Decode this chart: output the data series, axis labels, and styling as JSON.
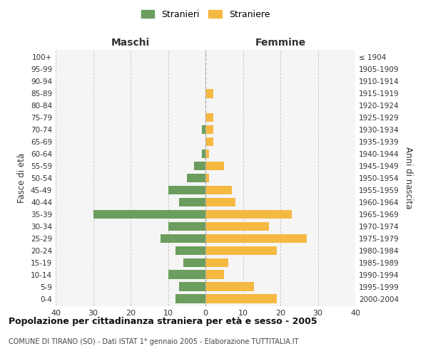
{
  "age_groups": [
    "0-4",
    "5-9",
    "10-14",
    "15-19",
    "20-24",
    "25-29",
    "30-34",
    "35-39",
    "40-44",
    "45-49",
    "50-54",
    "55-59",
    "60-64",
    "65-69",
    "70-74",
    "75-79",
    "80-84",
    "85-89",
    "90-94",
    "95-99",
    "100+"
  ],
  "birth_years": [
    "2000-2004",
    "1995-1999",
    "1990-1994",
    "1985-1989",
    "1980-1984",
    "1975-1979",
    "1970-1974",
    "1965-1969",
    "1960-1964",
    "1955-1959",
    "1950-1954",
    "1945-1949",
    "1940-1944",
    "1935-1939",
    "1930-1934",
    "1925-1929",
    "1920-1924",
    "1915-1919",
    "1910-1914",
    "1905-1909",
    "≤ 1904"
  ],
  "maschi": [
    8,
    7,
    10,
    6,
    8,
    12,
    10,
    30,
    7,
    10,
    5,
    3,
    1,
    0,
    1,
    0,
    0,
    0,
    0,
    0,
    0
  ],
  "femmine": [
    19,
    13,
    5,
    6,
    19,
    27,
    17,
    23,
    8,
    7,
    1,
    5,
    1,
    2,
    2,
    2,
    0,
    2,
    0,
    0,
    0
  ],
  "male_color": "#6b9e5e",
  "female_color": "#f5b942",
  "xlim": 40,
  "title": "Popolazione per cittadinanza straniera per età e sesso - 2005",
  "subtitle": "COMUNE DI TIRANO (SO) - Dati ISTAT 1° gennaio 2005 - Elaborazione TUTTITALIA.IT",
  "label_maschi": "Maschi",
  "label_femmine": "Femmine",
  "ylabel_left": "Fasce di età",
  "ylabel_right": "Anni di nascita",
  "legend_male": "Stranieri",
  "legend_female": "Straniere",
  "background_color": "#f5f5f5",
  "grid_color": "#cccccc",
  "bar_height": 0.75
}
